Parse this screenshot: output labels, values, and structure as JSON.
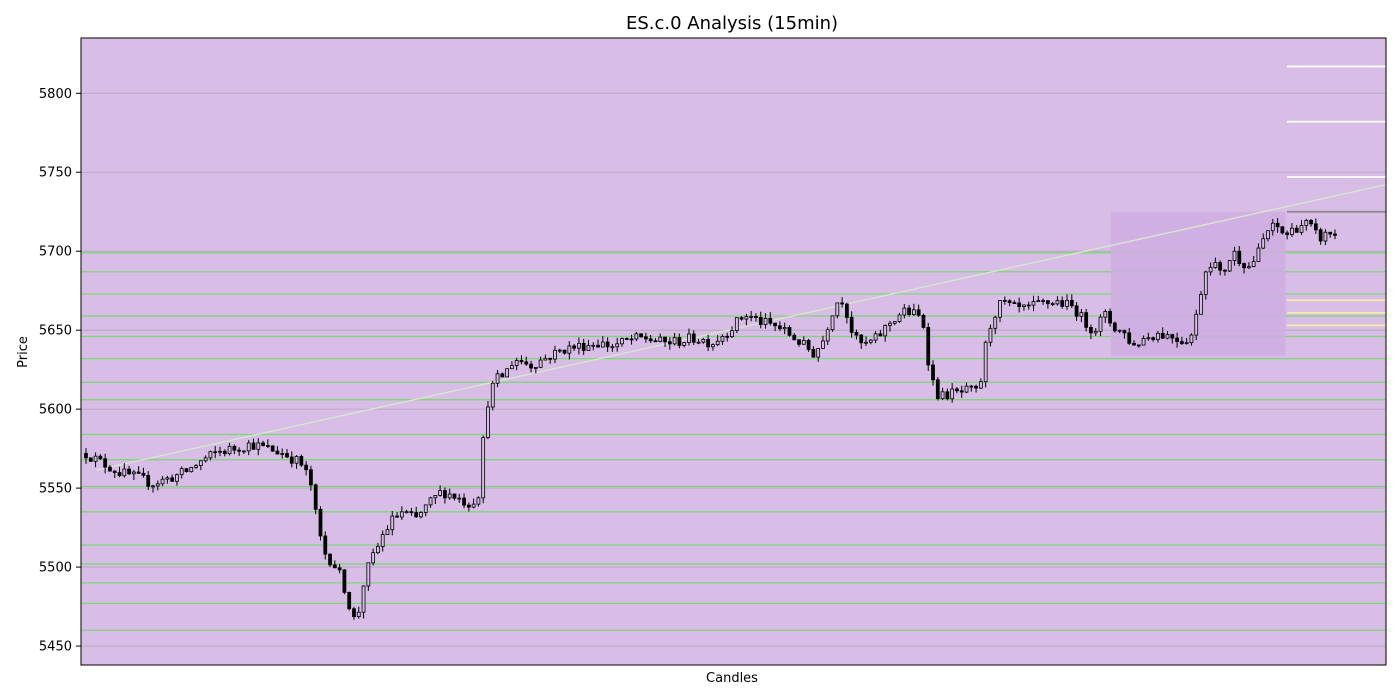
{
  "chart_data": {
    "type": "candlestick",
    "title": "ES.c.0 Analysis (15min)",
    "xlabel": "Candles",
    "ylabel": "Price",
    "ylim": [
      5438,
      5835
    ],
    "y_ticks": [
      5450,
      5500,
      5550,
      5600,
      5650,
      5700,
      5750,
      5800
    ],
    "grid": "horizontal",
    "candle_count": 262,
    "colors": {
      "background": "#d8bde6",
      "grid": "#b0a6b5",
      "candle": "#000000",
      "support_resistance": "#7fd67a",
      "trendline": "#d9e8cc",
      "highlight_box": "#cfaee0",
      "projection_white": "#ffffff",
      "projection_gray": "#8a8a8a",
      "projection_yellow": "#f3e9a8"
    },
    "price_path_anchors": [
      [
        0,
        5572
      ],
      [
        4,
        5567
      ],
      [
        10,
        5560
      ],
      [
        15,
        5557
      ],
      [
        20,
        5553
      ],
      [
        25,
        5556
      ],
      [
        30,
        5560
      ],
      [
        35,
        5567
      ],
      [
        40,
        5573
      ],
      [
        45,
        5575
      ],
      [
        50,
        5578
      ],
      [
        55,
        5575
      ],
      [
        60,
        5572
      ],
      [
        65,
        5566
      ],
      [
        68,
        5555
      ],
      [
        70,
        5530
      ],
      [
        72,
        5510
      ],
      [
        74,
        5505
      ],
      [
        76,
        5500
      ],
      [
        78,
        5490
      ],
      [
        80,
        5475
      ],
      [
        82,
        5463
      ],
      [
        84,
        5488
      ],
      [
        86,
        5502
      ],
      [
        88,
        5510
      ],
      [
        90,
        5520
      ],
      [
        93,
        5530
      ],
      [
        96,
        5535
      ],
      [
        100,
        5530
      ],
      [
        104,
        5540
      ],
      [
        108,
        5548
      ],
      [
        112,
        5545
      ],
      [
        116,
        5540
      ],
      [
        119,
        5545
      ],
      [
        120,
        5568
      ],
      [
        121,
        5590
      ],
      [
        122,
        5605
      ],
      [
        124,
        5618
      ],
      [
        127,
        5622
      ],
      [
        130,
        5632
      ],
      [
        135,
        5628
      ],
      [
        140,
        5633
      ],
      [
        145,
        5638
      ],
      [
        150,
        5640
      ],
      [
        155,
        5642
      ],
      [
        160,
        5640
      ],
      [
        165,
        5644
      ],
      [
        170,
        5645
      ],
      [
        175,
        5642
      ],
      [
        180,
        5643
      ],
      [
        185,
        5645
      ],
      [
        190,
        5642
      ],
      [
        195,
        5650
      ],
      [
        200,
        5660
      ],
      [
        205,
        5655
      ],
      [
        210,
        5652
      ],
      [
        215,
        5645
      ],
      [
        218,
        5640
      ],
      [
        221,
        5635
      ],
      [
        224,
        5645
      ],
      [
        226,
        5660
      ],
      [
        229,
        5672
      ],
      [
        231,
        5660
      ],
      [
        233,
        5645
      ],
      [
        236,
        5640
      ],
      [
        240,
        5645
      ],
      [
        244,
        5655
      ],
      [
        248,
        5662
      ],
      [
        252,
        5660
      ],
      [
        254,
        5655
      ],
      [
        256,
        5625
      ],
      [
        258,
        5610
      ],
      [
        260,
        5608
      ],
      [
        262,
        5610
      ],
      [
        265,
        5610
      ],
      [
        268,
        5612
      ],
      [
        271,
        5610
      ],
      [
        273,
        5640
      ],
      [
        275,
        5658
      ],
      [
        278,
        5668
      ],
      [
        281,
        5664
      ],
      [
        285,
        5663
      ],
      [
        290,
        5667
      ],
      [
        295,
        5668
      ],
      [
        300,
        5664
      ],
      [
        303,
        5655
      ],
      [
        306,
        5650
      ],
      [
        309,
        5660
      ],
      [
        312,
        5652
      ],
      [
        315,
        5648
      ],
      [
        318,
        5640
      ],
      [
        321,
        5645
      ],
      [
        325,
        5648
      ],
      [
        330,
        5646
      ],
      [
        333,
        5643
      ],
      [
        336,
        5648
      ],
      [
        338,
        5672
      ],
      [
        340,
        5690
      ],
      [
        342,
        5695
      ],
      [
        344,
        5685
      ],
      [
        346,
        5690
      ],
      [
        348,
        5700
      ],
      [
        350,
        5695
      ],
      [
        353,
        5690
      ],
      [
        356,
        5700
      ],
      [
        358,
        5712
      ],
      [
        361,
        5716
      ],
      [
        364,
        5710
      ],
      [
        367,
        5715
      ],
      [
        370,
        5718
      ],
      [
        372,
        5714
      ],
      [
        374,
        5708
      ],
      [
        376,
        5710
      ],
      [
        378,
        5712
      ],
      [
        379,
        5710
      ]
    ],
    "support_resistance_levels": [
      5699,
      5687,
      5673,
      5659,
      5646,
      5632,
      5617,
      5606,
      5584,
      5568,
      5551,
      5535,
      5514,
      5502,
      5490,
      5477,
      5460
    ],
    "trendline": {
      "x": [
        0,
        379
      ],
      "y": [
        5560,
        5735
      ]
    },
    "highlight_box": {
      "x_start": 311,
      "x_end": 364,
      "y_low": 5634,
      "y_high": 5725
    },
    "projection_levels": [
      {
        "value": 5817,
        "color": "white"
      },
      {
        "value": 5782,
        "color": "white"
      },
      {
        "value": 5747,
        "color": "white"
      },
      {
        "value": 5725,
        "color": "gray"
      },
      {
        "value": 5669,
        "color": "yellow"
      },
      {
        "value": 5661,
        "color": "yellow"
      },
      {
        "value": 5653,
        "color": "yellow"
      }
    ]
  }
}
